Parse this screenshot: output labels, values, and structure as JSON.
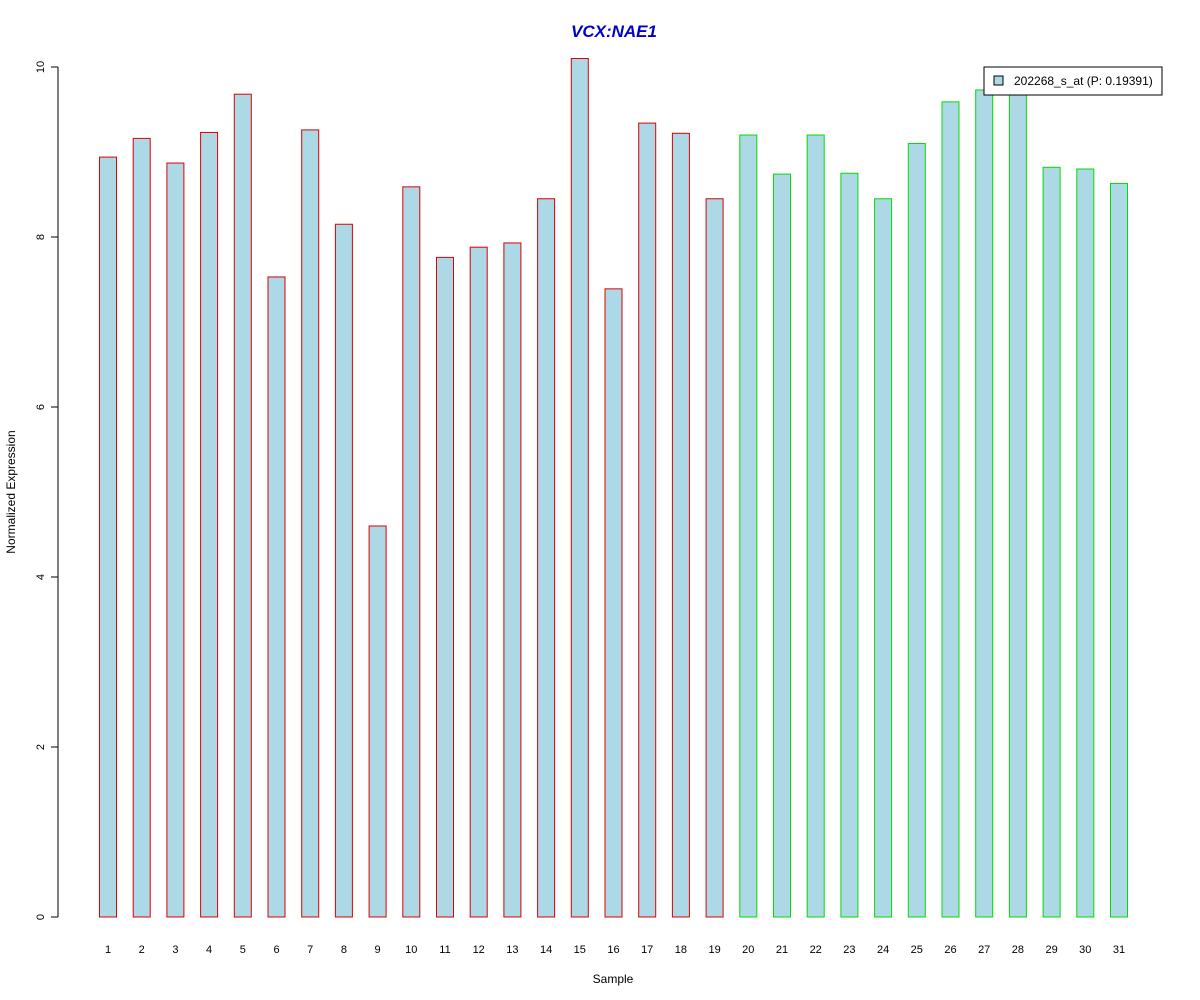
{
  "chart_data": {
    "type": "bar",
    "title": "VCX:NAE1",
    "xlabel": "Sample",
    "ylabel": "Normalized Expression",
    "ylim": [
      0,
      10
    ],
    "yticks": [
      "0",
      "2",
      "4",
      "6",
      "8",
      "10"
    ],
    "categories": [
      "1",
      "2",
      "3",
      "4",
      "5",
      "6",
      "7",
      "8",
      "9",
      "10",
      "11",
      "12",
      "13",
      "14",
      "15",
      "16",
      "17",
      "18",
      "19",
      "20",
      "21",
      "22",
      "23",
      "24",
      "25",
      "26",
      "27",
      "28",
      "29",
      "30",
      "31"
    ],
    "series": [
      {
        "name": "202268_s_at (P: 0.19391)",
        "values": [
          8.94,
          9.16,
          8.87,
          9.23,
          9.68,
          7.53,
          9.26,
          8.15,
          4.6,
          8.59,
          7.76,
          7.88,
          7.93,
          8.45,
          10.1,
          7.39,
          9.34,
          9.22,
          8.45,
          9.2,
          8.74,
          9.2,
          8.75,
          8.45,
          9.1,
          9.59,
          9.73,
          9.74,
          8.82,
          8.8,
          8.63
        ]
      }
    ],
    "group_border_colors": [
      "#dd0000",
      "#dd0000",
      "#dd0000",
      "#dd0000",
      "#dd0000",
      "#dd0000",
      "#dd0000",
      "#dd0000",
      "#dd0000",
      "#dd0000",
      "#dd0000",
      "#dd0000",
      "#dd0000",
      "#dd0000",
      "#dd0000",
      "#dd0000",
      "#dd0000",
      "#dd0000",
      "#dd0000",
      "#00dd00",
      "#00dd00",
      "#00dd00",
      "#00dd00",
      "#00dd00",
      "#00dd00",
      "#00dd00",
      "#00dd00",
      "#00dd00",
      "#00dd00",
      "#00dd00",
      "#00dd00"
    ],
    "bar_fill": "#add8e6",
    "title_color": "#0000cc",
    "legend_position": "top-right",
    "grid": false
  }
}
